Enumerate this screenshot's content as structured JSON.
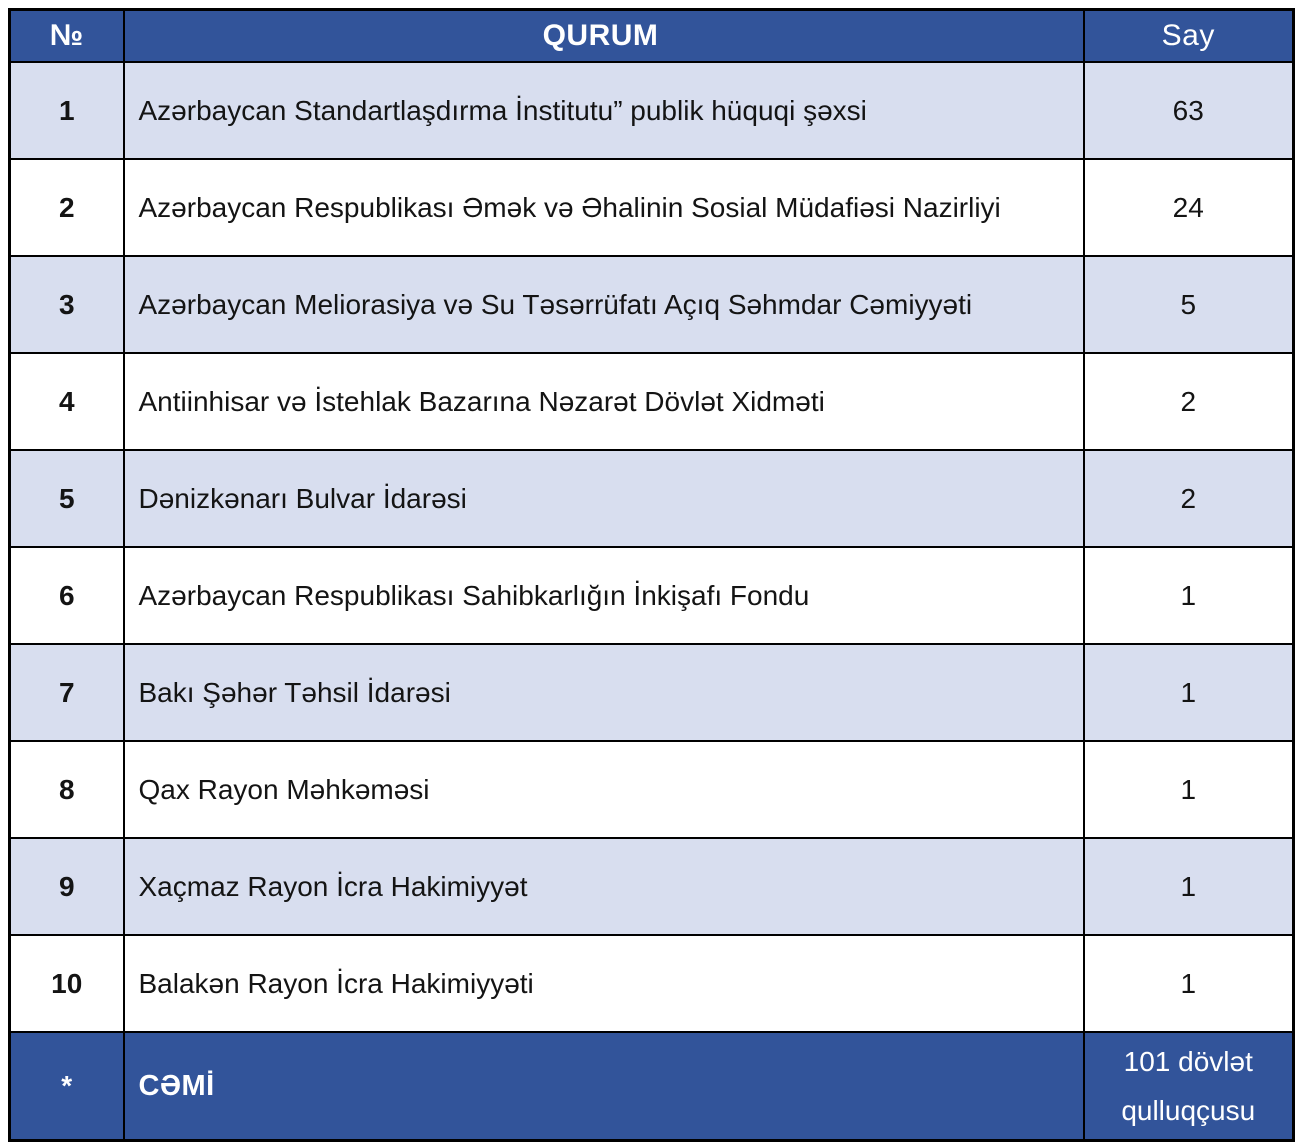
{
  "colors": {
    "header_bg": "#32549A",
    "footer_bg": "#32549A",
    "band_bg": "#D8DEEF",
    "border": "#000000",
    "header_text": "#FFFFFF",
    "body_text": "#141414"
  },
  "table": {
    "columns": [
      {
        "key": "no",
        "label": "№"
      },
      {
        "key": "qurum",
        "label": "QURUM"
      },
      {
        "key": "say",
        "label": "Say"
      }
    ],
    "rows": [
      {
        "no": "1",
        "qurum": "Azərbaycan Standartlaşdırma İnstitutu” publik hüquqi şəxsi",
        "say": "63"
      },
      {
        "no": "2",
        "qurum": "Azərbaycan Respublikası Əmək və Əhalinin Sosial Müdafiəsi Nazirliyi",
        "say": "24"
      },
      {
        "no": "3",
        "qurum": "Azərbaycan Meliorasiya və Su Təsərrüfatı Açıq Səhmdar Cəmiyyəti",
        "say": "5"
      },
      {
        "no": "4",
        "qurum": "Antiinhisar və İstehlak Bazarına Nəzarət Dövlət Xidməti",
        "say": "2"
      },
      {
        "no": "5",
        "qurum": "Dənizkənarı Bulvar İdarəsi",
        "say": "2"
      },
      {
        "no": "6",
        "qurum": "Azərbaycan Respublikası Sahibkarlığın İnkişafı Fondu",
        "say": "1"
      },
      {
        "no": "7",
        "qurum": "Bakı Şəhər Təhsil İdarəsi",
        "say": "1"
      },
      {
        "no": "8",
        "qurum": "Qax Rayon Məhkəməsi",
        "say": "1"
      },
      {
        "no": "9",
        "qurum": "Xaçmaz Rayon İcra Hakimiyyət",
        "say": "1"
      },
      {
        "no": "10",
        "qurum": "Balakən Rayon İcra Hakimiyyəti",
        "say": "1"
      }
    ],
    "footer": {
      "no": "*",
      "qurum": "CƏMİ",
      "say": "101 dövlət qulluqçusu"
    }
  },
  "chart_data": {
    "type": "table",
    "title": "",
    "categories": [
      "Azərbaycan Standartlaşdırma İnstitutu” publik hüquqi şəxsi",
      "Azərbaycan Respublikası Əmək və Əhalinin Sosial Müdafiəsi Nazirliyi",
      "Azərbaycan Meliorasiya və Su Təsərrüfatı Açıq Səhmdar Cəmiyyəti",
      "Antiinhisar və İstehlak Bazarına Nəzarət Dövlət Xidməti",
      "Dənizkənarı Bulvar İdarəsi",
      "Azərbaycan Respublikası Sahibkarlığın İnkişafı Fondu",
      "Bakı Şəhər Təhsil İdarəsi",
      "Qax Rayon Məhkəməsi",
      "Xaçmaz Rayon İcra Hakimiyyət",
      "Balakən Rayon İcra Hakimiyyəti"
    ],
    "values": [
      63,
      24,
      5,
      2,
      2,
      1,
      1,
      1,
      1,
      1
    ],
    "total_label": "101 dövlət qulluqçusu"
  }
}
